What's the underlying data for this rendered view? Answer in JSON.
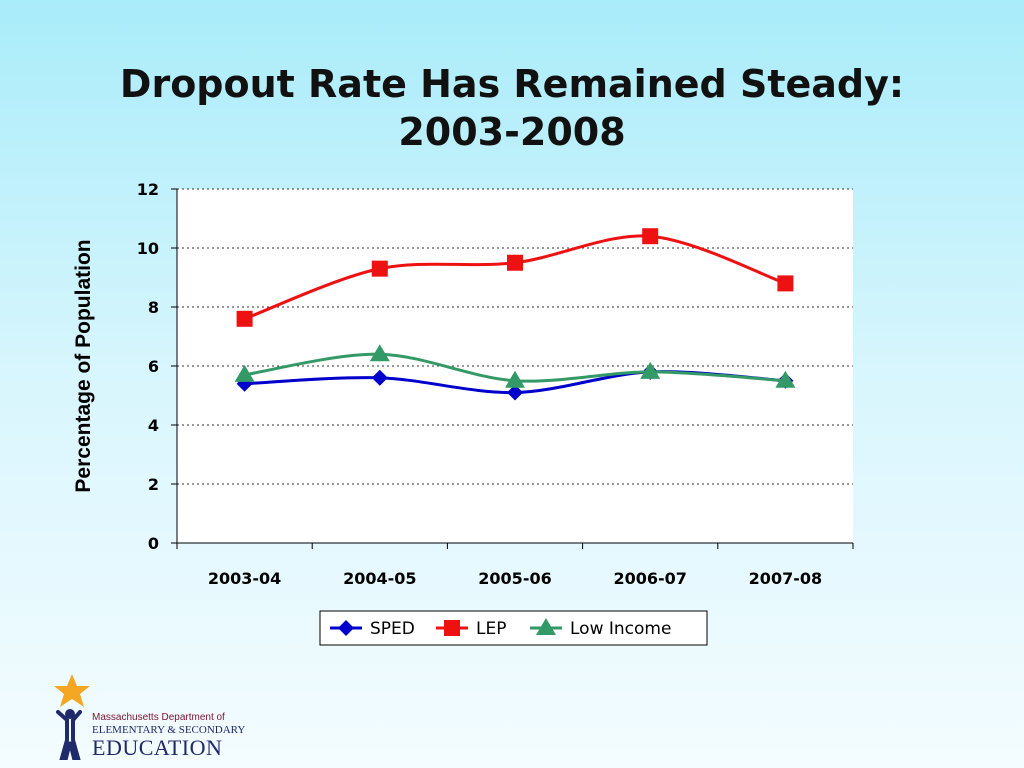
{
  "slide": {
    "title_line1": "Dropout Rate Has Remained Steady:",
    "title_line2": "2003-2008"
  },
  "chart_data": {
    "type": "line",
    "title": "",
    "xlabel": "",
    "ylabel": "Percentage of Population",
    "categories": [
      "2003-04",
      "2004-05",
      "2005-06",
      "2006-07",
      "2007-08"
    ],
    "ylim": [
      0,
      12
    ],
    "yticks": [
      "0",
      "2",
      "4",
      "6",
      "8",
      "10",
      "12"
    ],
    "grid": "horizontal dotted",
    "legend_position": "bottom",
    "series": [
      {
        "name": "SPED",
        "values": [
          5.4,
          5.6,
          5.1,
          5.8,
          5.5
        ],
        "color": "#0000cc",
        "marker": "diamond"
      },
      {
        "name": "LEP",
        "values": [
          7.6,
          9.3,
          9.5,
          10.4,
          8.8
        ],
        "color": "#ee1111",
        "marker": "square"
      },
      {
        "name": "Low Income",
        "values": [
          5.7,
          6.4,
          5.5,
          5.8,
          5.5
        ],
        "color": "#339966",
        "marker": "triangle"
      }
    ]
  },
  "logo": {
    "line1": "Massachusetts Department of",
    "line2": "ELEMENTARY & SECONDARY",
    "line3": "EDUCATION",
    "star_color": "#f5a623"
  }
}
